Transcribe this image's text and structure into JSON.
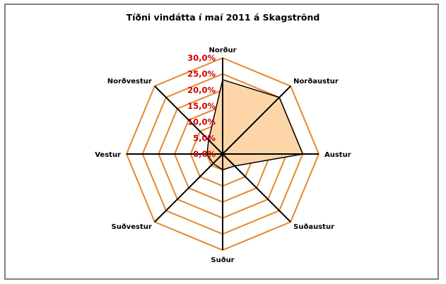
{
  "chart_data": {
    "type": "radar",
    "title": "Tíðni vindátta í maí 2011 á Skagströnd",
    "categories": [
      "Norður",
      "Norðaustur",
      "Austur",
      "Suðaustur",
      "Suður",
      "Suðvestur",
      "Vestur",
      "Norðvestur"
    ],
    "series": [
      {
        "name": "Tíðni",
        "values": [
          23.2,
          25.0,
          25.0,
          5.3,
          4.9,
          4.2,
          4.9,
          6.2
        ]
      }
    ],
    "radial_ticks": [
      "0,0%",
      "5,0%",
      "10,0%",
      "15,0%",
      "20,0%",
      "25,0%",
      "30,0%"
    ],
    "rlim": [
      0,
      30
    ],
    "colors": {
      "fill": "#fcd5a8",
      "grid": "#e8862c",
      "spokes": "#000000",
      "ticks": "#cc0000",
      "border": "#808080"
    },
    "legend": "none"
  }
}
